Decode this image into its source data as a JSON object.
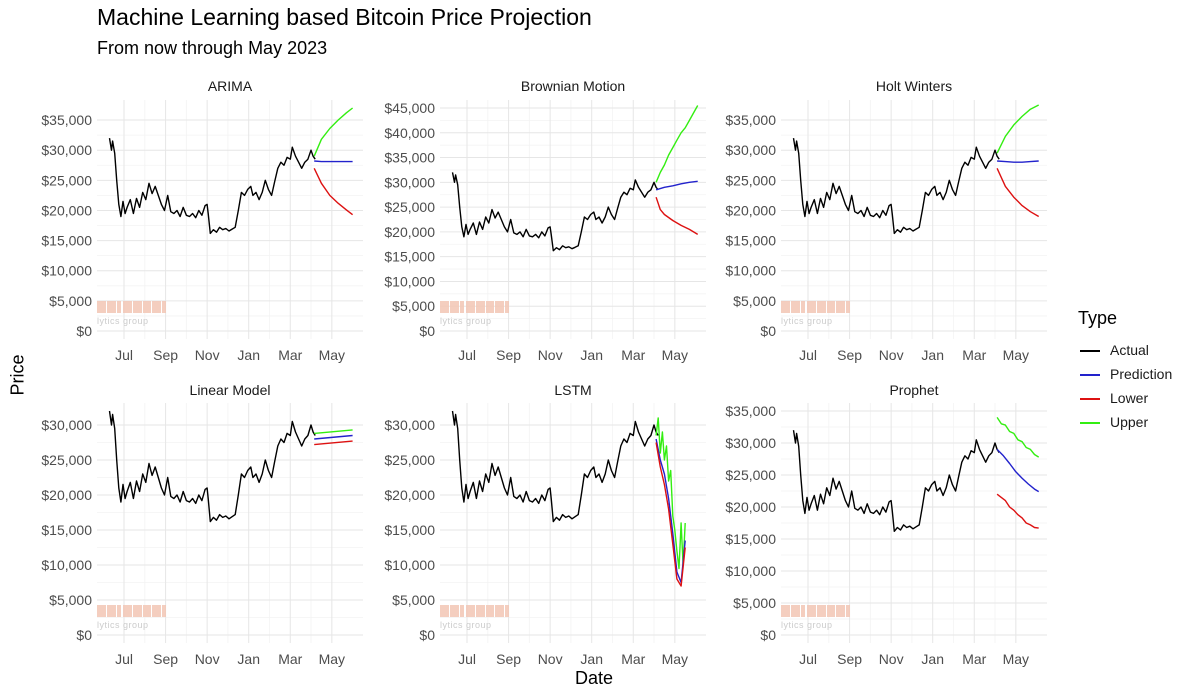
{
  "title": "Machine Learning based Bitcoin Price Projection",
  "subtitle": "From now through May 2023",
  "xlabel": "Date",
  "ylabel": "Price",
  "legend": {
    "title": "Type",
    "items": [
      {
        "label": "Actual",
        "color": "#000000"
      },
      {
        "label": "Prediction",
        "color": "#2222cc"
      },
      {
        "label": "Lower",
        "color": "#dd1111"
      },
      {
        "label": "Upper",
        "color": "#33ee11"
      }
    ]
  },
  "watermark": {
    "text": "lytics group",
    "color": "#f2c6b4"
  },
  "chart_data": {
    "type": "line",
    "grid": true,
    "legend_position": "right",
    "x_ticks": [
      "Jul",
      "Sep",
      "Nov",
      "Jan",
      "Mar",
      "May"
    ],
    "x_tick_values": [
      1,
      3,
      5,
      7,
      9,
      11
    ],
    "x_range": [
      -0.3,
      12.5
    ],
    "actual": {
      "name": "Actual",
      "x": [
        0.3,
        0.4,
        0.45,
        0.55,
        0.65,
        0.75,
        0.85,
        0.95,
        1.05,
        1.15,
        1.3,
        1.45,
        1.6,
        1.75,
        1.9,
        2.05,
        2.2,
        2.35,
        2.5,
        2.65,
        2.8,
        2.95,
        3.1,
        3.25,
        3.4,
        3.55,
        3.7,
        3.85,
        4.0,
        4.15,
        4.3,
        4.45,
        4.6,
        4.75,
        4.9,
        5.0,
        5.05,
        5.15,
        5.3,
        5.45,
        5.6,
        5.75,
        5.9,
        6.05,
        6.2,
        6.35,
        6.5,
        6.65,
        6.8,
        6.95,
        7.1,
        7.2,
        7.35,
        7.5,
        7.65,
        7.8,
        7.95,
        8.1,
        8.25,
        8.4,
        8.55,
        8.7,
        8.85,
        9.0,
        9.1,
        9.25,
        9.4,
        9.55,
        9.7,
        9.85,
        10.0,
        10.1,
        10.2
      ],
      "y": [
        32000,
        30000,
        31500,
        29500,
        25000,
        21000,
        19000,
        21500,
        19500,
        20500,
        21800,
        19500,
        22000,
        20500,
        23000,
        21800,
        24500,
        22800,
        24000,
        22500,
        21000,
        20000,
        22500,
        19800,
        19500,
        20000,
        19000,
        20500,
        19200,
        19000,
        19500,
        18800,
        20000,
        19200,
        20800,
        21000,
        19500,
        16200,
        16800,
        16400,
        17200,
        16800,
        17000,
        16600,
        16900,
        17200,
        20000,
        23000,
        22500,
        23500,
        24000,
        22500,
        23000,
        21800,
        23000,
        25000,
        23500,
        22500,
        24800,
        27000,
        28000,
        27500,
        28800,
        28500,
        30500,
        29000,
        28000,
        27000,
        28000,
        28500,
        30000,
        29000,
        28500
      ]
    },
    "panels": [
      {
        "title": "ARIMA",
        "ylim": [
          0,
          37000
        ],
        "y_ticks": [
          0,
          5000,
          10000,
          15000,
          20000,
          25000,
          30000,
          35000
        ],
        "y_tick_labels": [
          "$0",
          "$5,000",
          "$10,000",
          "$15,000",
          "$20,000",
          "$25,000",
          "$30,000",
          "$35,000"
        ],
        "series": [
          {
            "name": "Upper",
            "x": [
              10.15,
              10.5,
              10.9,
              11.3,
              11.7,
              12.0
            ],
            "y": [
              29000,
              31800,
              33600,
              35000,
              36200,
              37000
            ]
          },
          {
            "name": "Prediction",
            "x": [
              10.15,
              10.5,
              10.9,
              11.3,
              11.7,
              12.0
            ],
            "y": [
              28200,
              28100,
              28100,
              28100,
              28100,
              28100
            ]
          },
          {
            "name": "Lower",
            "x": [
              10.15,
              10.5,
              10.9,
              11.3,
              11.7,
              12.0
            ],
            "y": [
              27000,
              24500,
              22500,
              21200,
              20100,
              19300
            ]
          }
        ]
      },
      {
        "title": "Brownian Motion",
        "ylim": [
          0,
          45000
        ],
        "y_ticks": [
          0,
          5000,
          10000,
          15000,
          20000,
          25000,
          30000,
          35000,
          40000,
          45000
        ],
        "y_tick_labels": [
          "$0",
          "$5,000",
          "$10,000",
          "$15,000",
          "$20,000",
          "$25,000",
          "$30,000",
          "$35,000",
          "$40,000",
          "$45,000"
        ],
        "series": [
          {
            "name": "Upper",
            "x": [
              10.1,
              10.3,
              10.5,
              10.7,
              10.9,
              11.1,
              11.3,
              11.5,
              11.7,
              11.9,
              12.1
            ],
            "y": [
              30000,
              32000,
              33500,
              35500,
              37000,
              38500,
              40000,
              41000,
              42500,
              44000,
              45500
            ]
          },
          {
            "name": "Prediction",
            "x": [
              10.1,
              10.5,
              10.9,
              11.3,
              11.7,
              12.1
            ],
            "y": [
              28500,
              29000,
              29300,
              29700,
              30000,
              30200
            ]
          },
          {
            "name": "Lower",
            "x": [
              10.1,
              10.3,
              10.5,
              10.9,
              11.3,
              11.7,
              12.1
            ],
            "y": [
              27000,
              24500,
              23500,
              22300,
              21300,
              20500,
              19500
            ]
          }
        ]
      },
      {
        "title": "Holt Winters",
        "ylim": [
          0,
          37000
        ],
        "y_ticks": [
          0,
          5000,
          10000,
          15000,
          20000,
          25000,
          30000,
          35000
        ],
        "y_tick_labels": [
          "$0",
          "$5,000",
          "$10,000",
          "$15,000",
          "$20,000",
          "$25,000",
          "$30,000",
          "$35,000"
        ],
        "series": [
          {
            "name": "Upper",
            "x": [
              10.1,
              10.5,
              10.9,
              11.3,
              11.7,
              12.1
            ],
            "y": [
              29500,
              32300,
              34200,
              35600,
              36800,
              37500
            ]
          },
          {
            "name": "Prediction",
            "x": [
              10.1,
              10.5,
              10.9,
              11.3,
              11.7,
              12.1
            ],
            "y": [
              28200,
              28100,
              28000,
              28000,
              28100,
              28200
            ]
          },
          {
            "name": "Lower",
            "x": [
              10.1,
              10.5,
              10.9,
              11.3,
              11.7,
              12.1
            ],
            "y": [
              27000,
              24000,
              22200,
              20800,
              19800,
              19000
            ]
          }
        ]
      },
      {
        "title": "Linear Model",
        "ylim": [
          0,
          32000
        ],
        "y_ticks": [
          0,
          5000,
          10000,
          15000,
          20000,
          25000,
          30000
        ],
        "y_tick_labels": [
          "$0",
          "$5,000",
          "$10,000",
          "$15,000",
          "$20,000",
          "$25,000",
          "$30,000"
        ],
        "series": [
          {
            "name": "Upper",
            "x": [
              10.15,
              12.0
            ],
            "y": [
              28800,
              29300
            ]
          },
          {
            "name": "Prediction",
            "x": [
              10.15,
              12.0
            ],
            "y": [
              28000,
              28500
            ]
          },
          {
            "name": "Lower",
            "x": [
              10.15,
              12.0
            ],
            "y": [
              27200,
              27700
            ]
          }
        ]
      },
      {
        "title": "LSTM",
        "ylim": [
          0,
          32000
        ],
        "y_ticks": [
          0,
          5000,
          10000,
          15000,
          20000,
          25000,
          30000
        ],
        "y_tick_labels": [
          "$0",
          "$5,000",
          "$10,000",
          "$15,000",
          "$20,000",
          "$25,000",
          "$30,000"
        ],
        "series": [
          {
            "name": "Upper",
            "x": [
              10.1,
              10.2,
              10.3,
              10.4,
              10.5,
              10.6,
              10.7,
              10.8,
              10.9,
              11.0,
              11.1,
              11.2,
              11.3,
              11.4,
              11.5
            ],
            "y": [
              28500,
              31000,
              26000,
              29000,
              25000,
              27000,
              22000,
              23500,
              17000,
              15000,
              12000,
              9500,
              16000,
              10000,
              16000
            ]
          },
          {
            "name": "Prediction",
            "x": [
              10.1,
              10.3,
              10.5,
              10.7,
              10.9,
              11.1,
              11.3,
              11.5
            ],
            "y": [
              28000,
              25000,
              23000,
              19500,
              14500,
              9000,
              7500,
              13500
            ]
          },
          {
            "name": "Lower",
            "x": [
              10.1,
              10.3,
              10.5,
              10.7,
              10.9,
              11.1,
              11.3,
              11.5
            ],
            "y": [
              27500,
              24000,
              21500,
              18000,
              13000,
              8000,
              7000,
              12500
            ]
          }
        ]
      },
      {
        "title": "Prophet",
        "ylim": [
          0,
          35000
        ],
        "y_ticks": [
          0,
          5000,
          10000,
          15000,
          20000,
          25000,
          30000,
          35000
        ],
        "y_tick_labels": [
          "$0",
          "$5,000",
          "$10,000",
          "$15,000",
          "$20,000",
          "$25,000",
          "$30,000",
          "$35,000"
        ],
        "series": [
          {
            "name": "Upper",
            "x": [
              10.1,
              10.3,
              10.5,
              10.7,
              10.9,
              11.1,
              11.3,
              11.5,
              11.7,
              11.9,
              12.1
            ],
            "y": [
              34000,
              33000,
              32800,
              31800,
              31500,
              30500,
              30200,
              29300,
              29000,
              28200,
              27800
            ]
          },
          {
            "name": "Prediction",
            "x": [
              10.1,
              10.4,
              10.7,
              11.0,
              11.3,
              11.6,
              11.9,
              12.1
            ],
            "y": [
              29000,
              28000,
              26800,
              25500,
              24500,
              23600,
              22800,
              22400
            ]
          },
          {
            "name": "Lower",
            "x": [
              10.1,
              10.3,
              10.5,
              10.7,
              10.9,
              11.1,
              11.3,
              11.5,
              11.7,
              11.9,
              12.1
            ],
            "y": [
              22000,
              21500,
              21000,
              20000,
              19500,
              18800,
              18300,
              17500,
              17200,
              16800,
              16700
            ]
          }
        ]
      }
    ]
  }
}
